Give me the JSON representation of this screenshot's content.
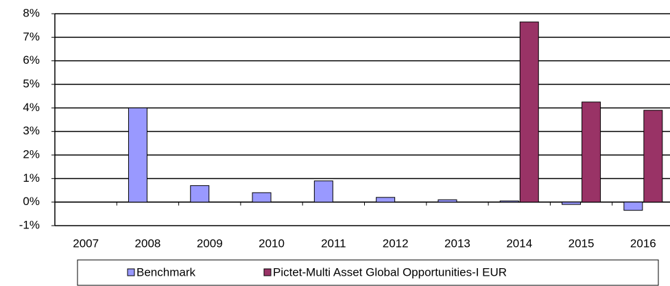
{
  "chart_data": {
    "type": "bar",
    "categories": [
      "2007",
      "2008",
      "2009",
      "2010",
      "2011",
      "2012",
      "2013",
      "2014",
      "2015",
      "2016"
    ],
    "series": [
      {
        "name": "Benchmark",
        "color": "#9999ff",
        "values": [
          null,
          4.0,
          0.7,
          0.4,
          0.9,
          0.2,
          0.1,
          0.05,
          -0.1,
          -0.35
        ]
      },
      {
        "name": "Pictet-Multi Asset Global Opportunities-I EUR",
        "color": "#993366",
        "values": [
          null,
          null,
          null,
          null,
          null,
          null,
          null,
          7.65,
          4.25,
          3.9
        ]
      }
    ],
    "ylim": [
      -1,
      8
    ],
    "yticks": [
      {
        "value": -1,
        "label": "-1%"
      },
      {
        "value": 0,
        "label": "0%"
      },
      {
        "value": 1,
        "label": "1%"
      },
      {
        "value": 2,
        "label": "2%"
      },
      {
        "value": 3,
        "label": "3%"
      },
      {
        "value": 4,
        "label": "4%"
      },
      {
        "value": 5,
        "label": "5%"
      },
      {
        "value": 6,
        "label": "6%"
      },
      {
        "value": 7,
        "label": "7%"
      },
      {
        "value": 8,
        "label": "8%"
      }
    ],
    "grid": true,
    "legend": "bottom"
  }
}
